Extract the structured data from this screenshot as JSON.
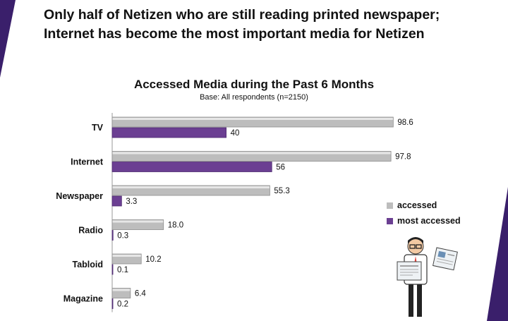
{
  "headline": {
    "line1": "Only half of Netizen who are still reading printed newspaper;",
    "line2": "Internet has become the most important media for Netizen"
  },
  "chart_data": {
    "type": "bar",
    "orientation": "horizontal",
    "title": "Accessed Media during the Past 6 Months",
    "subtitle": "Base: All respondents (n=2150)",
    "categories": [
      "TV",
      "Internet",
      "Newspaper",
      "Radio",
      "Tabloid",
      "Magazine"
    ],
    "series": [
      {
        "name": "accessed",
        "values": [
          98.6,
          97.8,
          55.3,
          18.0,
          10.2,
          6.4
        ],
        "labels": [
          "98.6",
          "97.8",
          "55.3",
          "18.0",
          "10.2",
          "6.4"
        ],
        "color": "#bdbdbd"
      },
      {
        "name": "most accessed",
        "values": [
          40,
          56,
          3.3,
          0.3,
          0.1,
          0.2
        ],
        "labels": [
          "40",
          "56",
          "3.3",
          "0.3",
          "0.1",
          "0.2"
        ],
        "color": "#6b3f92"
      }
    ],
    "xlim": [
      0,
      100
    ],
    "grid": false,
    "legend_position": "right"
  },
  "colors": {
    "accent": "#3a1f6b",
    "accessed": "#bdbdbd",
    "most_accessed": "#6b3f92"
  },
  "illustration": {
    "icon": "newspaper-reader-icon"
  }
}
